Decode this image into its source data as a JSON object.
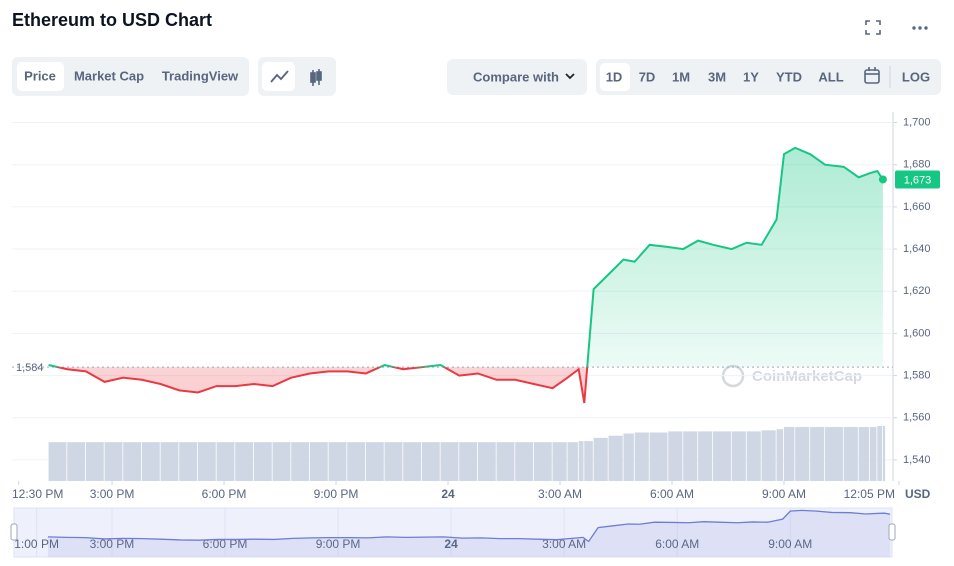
{
  "chart_data": {
    "type": "line",
    "title": "Ethereum to USD Chart",
    "ui": {
      "tabs": [
        "Price",
        "Market Cap",
        "TradingView"
      ],
      "compare": "Compare with",
      "ranges": [
        "1D",
        "7D",
        "1M",
        "3M",
        "1Y",
        "YTD",
        "ALL"
      ],
      "log": "LOG"
    },
    "y_axis_label": "USD",
    "watermark": "CoinMarketCap",
    "x": [
      13.3,
      13.8,
      14.3,
      14.8,
      15.3,
      15.8,
      16.3,
      16.8,
      17.3,
      17.8,
      18.3,
      18.8,
      19.3,
      19.8,
      20.3,
      20.8,
      21.3,
      21.8,
      22.3,
      22.8,
      23.3,
      23.8,
      24.3,
      24.8,
      25.3,
      25.8,
      26.3,
      26.8,
      27.2,
      27.5,
      27.65,
      27.9,
      28.3,
      28.7,
      29.0,
      29.4,
      29.9,
      30.3,
      30.7,
      31.1,
      31.6,
      32.0,
      32.4,
      32.8,
      33.0,
      33.3,
      33.7,
      34.1,
      34.6,
      35.0,
      35.3,
      35.5,
      35.65
    ],
    "values": [
      1585,
      1583,
      1582,
      1577,
      1579,
      1578,
      1576,
      1573,
      1572,
      1575,
      1575,
      1576,
      1575,
      1579,
      1581,
      1582,
      1582,
      1581,
      1585,
      1583,
      1584,
      1585,
      1580,
      1581,
      1578,
      1578,
      1576,
      1574,
      1579,
      1583,
      1567,
      1621,
      1628,
      1635,
      1634,
      1642,
      1641,
      1640,
      1644,
      1642,
      1640,
      1643,
      1642,
      1654,
      1685,
      1688,
      1685,
      1680,
      1679,
      1674,
      1676,
      1677,
      1673
    ],
    "volume_values": [
      36,
      36,
      36,
      36,
      36,
      36,
      36,
      36,
      36,
      36,
      36,
      36,
      36,
      36,
      36,
      36,
      36,
      36,
      36,
      36,
      36,
      36,
      36,
      36,
      36,
      36,
      36,
      36,
      36,
      37,
      37,
      40,
      42,
      44,
      45,
      45,
      46,
      46,
      46,
      46,
      46,
      46,
      47,
      48,
      50,
      50,
      50,
      50,
      50,
      50,
      50,
      51,
      51
    ],
    "up_color": "#16c784",
    "down_color": "#ea3943",
    "baseline": {
      "value": 1584,
      "label": "1,584"
    },
    "current_price": {
      "value": 1673,
      "label": "1,673"
    },
    "xlim": [
      12.32,
      35.92
    ],
    "xticks": [
      {
        "value": 12.5,
        "label": "12:30 PM"
      },
      {
        "value": 15,
        "label": "3:00 PM"
      },
      {
        "value": 18,
        "label": "6:00 PM"
      },
      {
        "value": 21,
        "label": "9:00 PM"
      },
      24,
      {
        "value": 27,
        "label": "3:00 AM"
      },
      {
        "value": 30,
        "label": "6:00 AM"
      },
      {
        "value": 33,
        "label": "9:00 AM"
      },
      {
        "value": 36.08,
        "label": "12:05 PM"
      }
    ],
    "ylim": [
      1530,
      1705
    ],
    "yticks": [
      {
        "value": 1540,
        "label": "1,540"
      },
      {
        "value": 1560,
        "label": "1,560"
      },
      {
        "value": 1580,
        "label": "1,580"
      },
      {
        "value": 1600,
        "label": "1,600"
      },
      {
        "value": 1620,
        "label": "1,620"
      },
      {
        "value": 1640,
        "label": "1,640"
      },
      {
        "value": 1660,
        "label": "1,660"
      },
      {
        "value": 1680,
        "label": "1,680"
      },
      {
        "value": 1700,
        "label": "1,700"
      }
    ],
    "grid": true,
    "navigator_xlim": [
      12.4,
      35.7
    ],
    "navigator_ticks": [
      {
        "value": 13,
        "label": "1:00 PM"
      },
      {
        "value": 15,
        "label": "3:00 PM"
      },
      {
        "value": 18,
        "label": "6:00 PM"
      },
      {
        "value": 21,
        "label": "9:00 PM"
      },
      24,
      {
        "value": 27,
        "label": "3:00 AM"
      },
      {
        "value": 30,
        "label": "6:00 AM"
      },
      {
        "value": 33,
        "label": "9:00 AM"
      }
    ],
    "navigator_color": "#6f7cd8"
  }
}
